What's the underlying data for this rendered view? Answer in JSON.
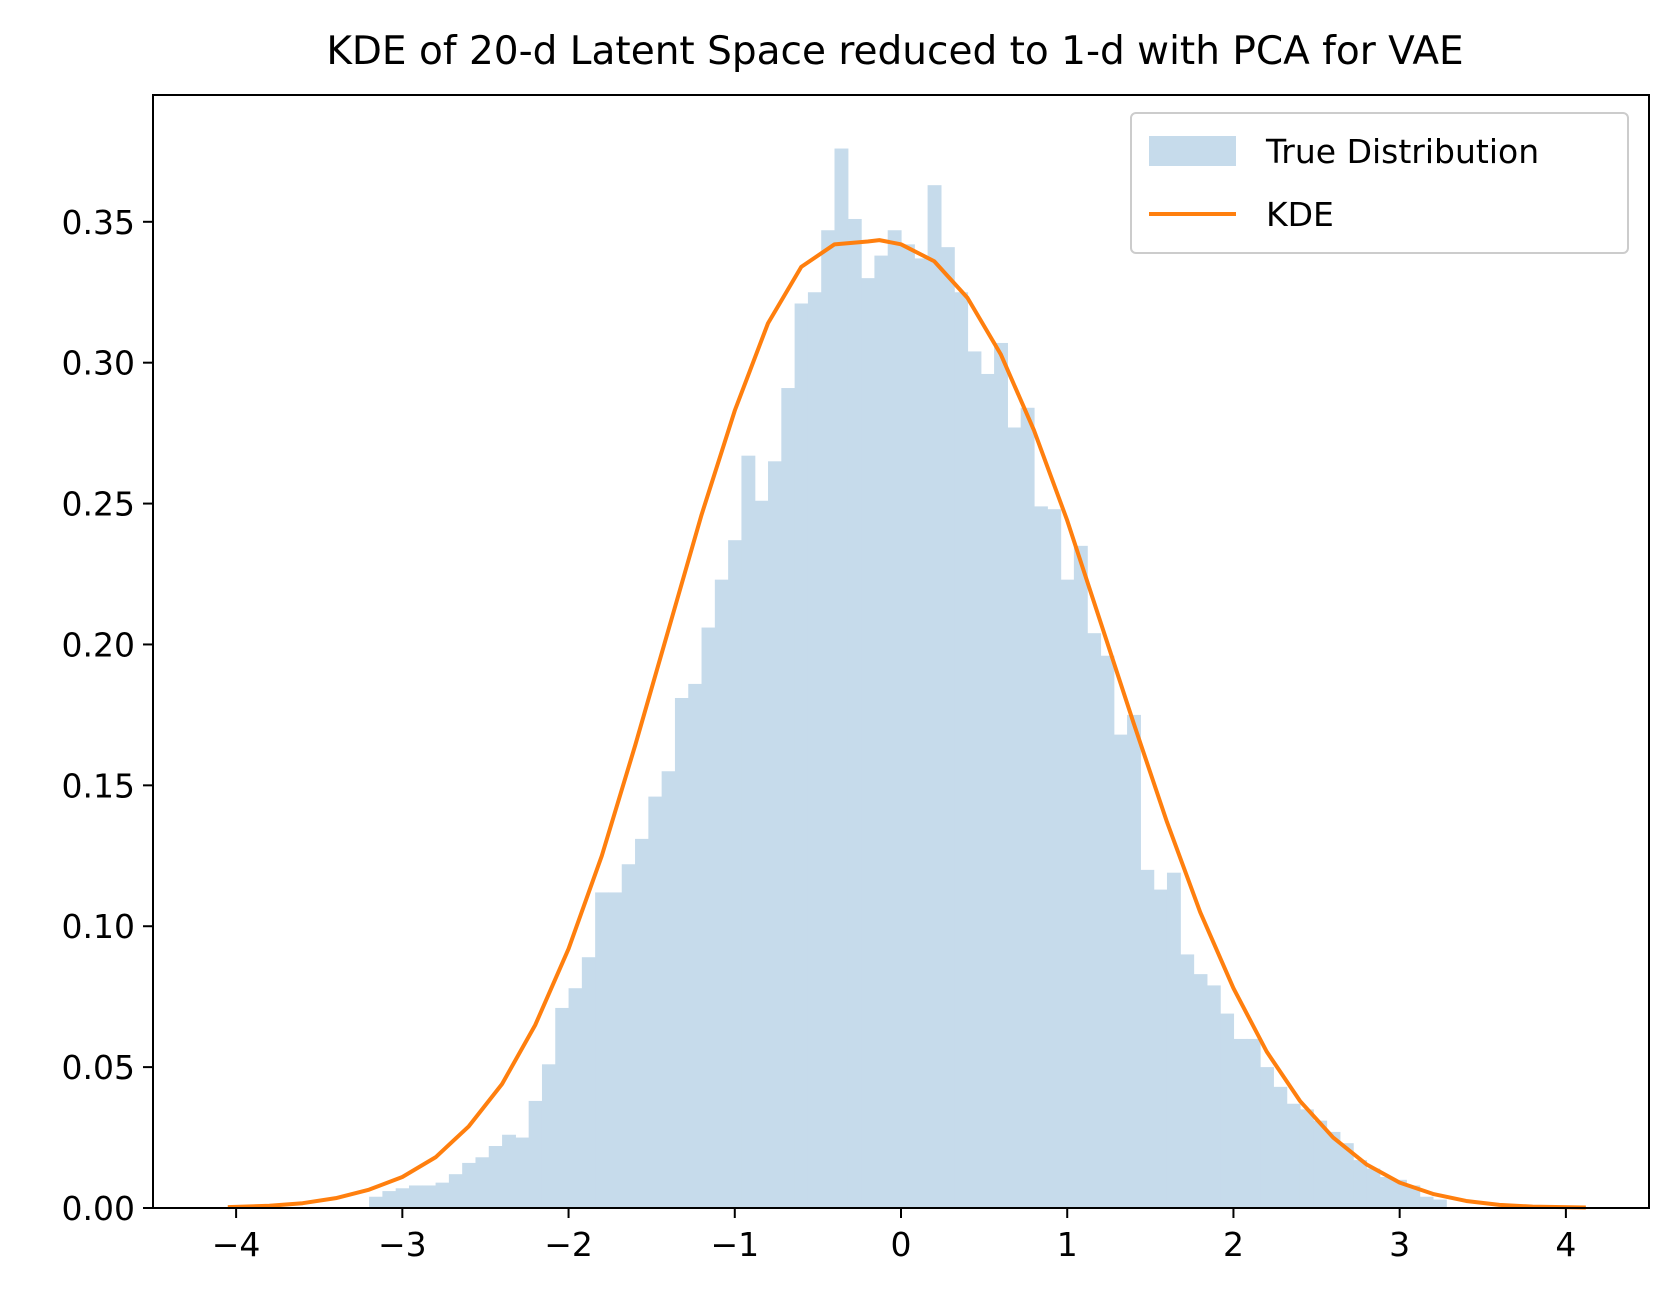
{
  "chart_data": {
    "type": "bar",
    "title": "KDE of 20-d Latent Space reduced to 1-d with PCA for VAE",
    "xlabel": "",
    "ylabel": "",
    "xlim": [
      -4.5,
      4.5
    ],
    "ylim": [
      0,
      0.395
    ],
    "xticks": [
      -4,
      -3,
      -2,
      -1,
      0,
      1,
      2,
      3,
      4
    ],
    "xtick_labels": [
      "−4",
      "−3",
      "−2",
      "−1",
      "0",
      "1",
      "2",
      "3",
      "4"
    ],
    "yticks": [
      0.0,
      0.05,
      0.1,
      0.15,
      0.2,
      0.25,
      0.3,
      0.35
    ],
    "ytick_labels": [
      "0.00",
      "0.05",
      "0.10",
      "0.15",
      "0.20",
      "0.25",
      "0.30",
      "0.35"
    ],
    "grid": false,
    "legend_placement": "top-right",
    "legend": [
      "True Distribution",
      "KDE"
    ],
    "series": [
      {
        "name": "True Distribution",
        "kind": "histogram",
        "color": "#c6dbeb",
        "bin_width": 0.08,
        "bins": [
          [
            -3.2,
            0.004
          ],
          [
            -3.12,
            0.006
          ],
          [
            -3.04,
            0.007
          ],
          [
            -2.96,
            0.008
          ],
          [
            -2.88,
            0.008
          ],
          [
            -2.8,
            0.009
          ],
          [
            -2.72,
            0.012
          ],
          [
            -2.64,
            0.016
          ],
          [
            -2.56,
            0.018
          ],
          [
            -2.48,
            0.022
          ],
          [
            -2.4,
            0.026
          ],
          [
            -2.32,
            0.025
          ],
          [
            -2.24,
            0.038
          ],
          [
            -2.16,
            0.051
          ],
          [
            -2.08,
            0.071
          ],
          [
            -2.0,
            0.078
          ],
          [
            -1.92,
            0.089
          ],
          [
            -1.84,
            0.112
          ],
          [
            -1.76,
            0.112
          ],
          [
            -1.68,
            0.122
          ],
          [
            -1.6,
            0.131
          ],
          [
            -1.52,
            0.146
          ],
          [
            -1.44,
            0.155
          ],
          [
            -1.36,
            0.181
          ],
          [
            -1.28,
            0.186
          ],
          [
            -1.2,
            0.206
          ],
          [
            -1.12,
            0.223
          ],
          [
            -1.04,
            0.237
          ],
          [
            -0.96,
            0.267
          ],
          [
            -0.88,
            0.251
          ],
          [
            -0.8,
            0.265
          ],
          [
            -0.72,
            0.291
          ],
          [
            -0.64,
            0.321
          ],
          [
            -0.56,
            0.325
          ],
          [
            -0.48,
            0.347
          ],
          [
            -0.4,
            0.376
          ],
          [
            -0.32,
            0.351
          ],
          [
            -0.24,
            0.33
          ],
          [
            -0.16,
            0.338
          ],
          [
            -0.08,
            0.347
          ],
          [
            0.0,
            0.342
          ],
          [
            0.08,
            0.337
          ],
          [
            0.16,
            0.363
          ],
          [
            0.24,
            0.341
          ],
          [
            0.32,
            0.325
          ],
          [
            0.4,
            0.304
          ],
          [
            0.48,
            0.296
          ],
          [
            0.56,
            0.307
          ],
          [
            0.64,
            0.277
          ],
          [
            0.72,
            0.284
          ],
          [
            0.8,
            0.249
          ],
          [
            0.88,
            0.248
          ],
          [
            0.96,
            0.223
          ],
          [
            1.04,
            0.235
          ],
          [
            1.12,
            0.204
          ],
          [
            1.2,
            0.196
          ],
          [
            1.28,
            0.168
          ],
          [
            1.36,
            0.175
          ],
          [
            1.44,
            0.12
          ],
          [
            1.52,
            0.113
          ],
          [
            1.6,
            0.119
          ],
          [
            1.68,
            0.09
          ],
          [
            1.76,
            0.083
          ],
          [
            1.84,
            0.079
          ],
          [
            1.92,
            0.069
          ],
          [
            2.0,
            0.06
          ],
          [
            2.08,
            0.06
          ],
          [
            2.16,
            0.05
          ],
          [
            2.24,
            0.043
          ],
          [
            2.32,
            0.037
          ],
          [
            2.4,
            0.035
          ],
          [
            2.48,
            0.031
          ],
          [
            2.56,
            0.027
          ],
          [
            2.64,
            0.023
          ],
          [
            2.72,
            0.017
          ],
          [
            2.8,
            0.014
          ],
          [
            2.88,
            0.011
          ],
          [
            2.96,
            0.01
          ],
          [
            3.04,
            0.008
          ],
          [
            3.12,
            0.004
          ],
          [
            3.2,
            0.003
          ]
        ]
      },
      {
        "name": "KDE",
        "kind": "line",
        "color": "#ff7f0e",
        "x": [
          -4.05,
          -3.8,
          -3.6,
          -3.4,
          -3.2,
          -3.0,
          -2.8,
          -2.6,
          -2.4,
          -2.2,
          -2.0,
          -1.8,
          -1.6,
          -1.4,
          -1.2,
          -1.0,
          -0.8,
          -0.6,
          -0.4,
          -0.2,
          -0.13,
          0.0,
          0.2,
          0.4,
          0.6,
          0.8,
          1.0,
          1.2,
          1.4,
          1.6,
          1.8,
          2.0,
          2.2,
          2.4,
          2.6,
          2.8,
          3.0,
          3.2,
          3.4,
          3.6,
          3.8,
          4.12
        ],
        "y": [
          0.0003,
          0.0008,
          0.0017,
          0.0035,
          0.0065,
          0.011,
          0.018,
          0.029,
          0.044,
          0.065,
          0.092,
          0.125,
          0.164,
          0.205,
          0.246,
          0.283,
          0.314,
          0.334,
          0.342,
          0.343,
          0.3435,
          0.342,
          0.336,
          0.323,
          0.303,
          0.276,
          0.244,
          0.208,
          0.172,
          0.137,
          0.105,
          0.078,
          0.0555,
          0.038,
          0.025,
          0.0155,
          0.009,
          0.005,
          0.0025,
          0.0011,
          0.0005,
          0.0002
        ]
      }
    ]
  }
}
